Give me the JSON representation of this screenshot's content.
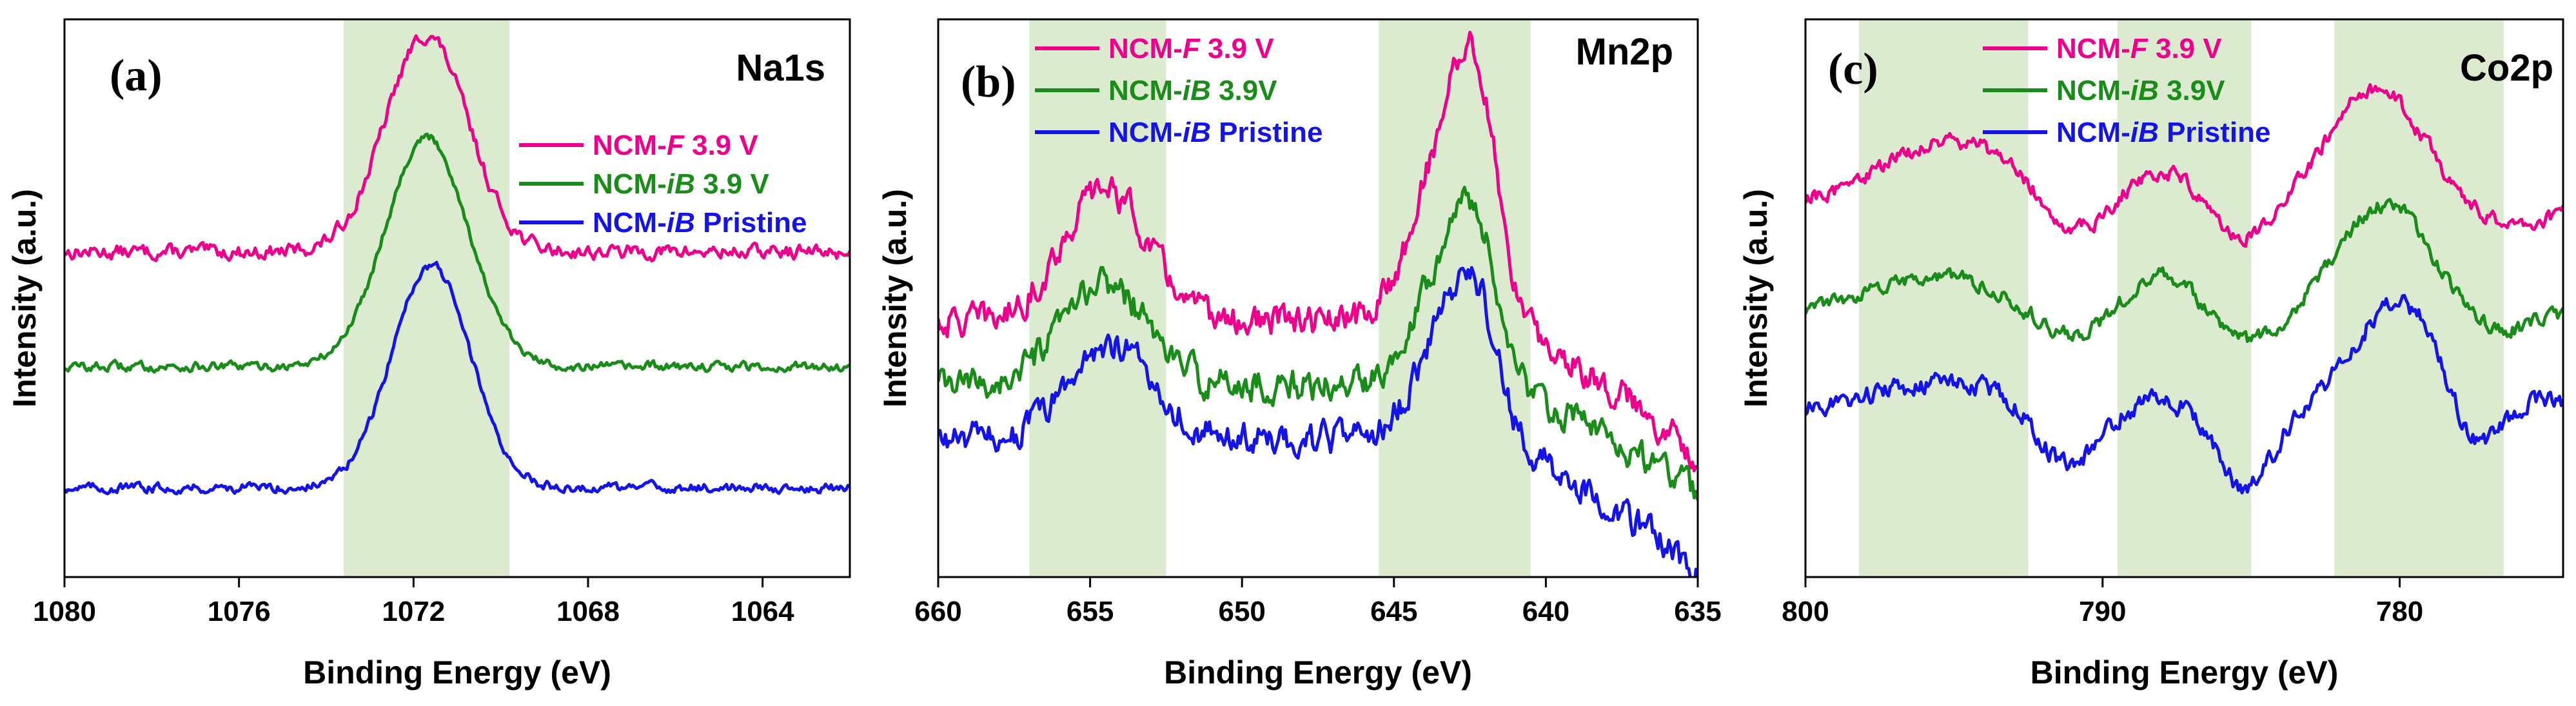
{
  "chart_data": [
    {
      "type": "line",
      "panel_label": "(a)",
      "title": "Na1s",
      "xlabel": "Binding Energy (eV)",
      "ylabel": "Intensity (a.u.)",
      "xlim": [
        1080,
        1062
      ],
      "x_ticks": [
        "1080",
        "1076",
        "1072",
        "1068",
        "1064"
      ],
      "x_tick_values": [
        1080,
        1076,
        1072,
        1068,
        1064
      ],
      "ylim": [
        0,
        1.75
      ],
      "y_ticks": false,
      "shaded_regions": [
        [
          1073.6,
          1069.8
        ]
      ],
      "legend_position": "right",
      "series": [
        {
          "name": "NCM-F 3.9 V",
          "name_prefix": "NCM-",
          "name_italic": "F",
          "name_suffix": " 3.9 V",
          "color": "#ec008c",
          "baseline": 1.02,
          "peaks": [
            {
              "center": 1071.7,
              "height": 0.68,
              "width": 0.95
            }
          ],
          "noise": 0.018
        },
        {
          "name": "NCM-iB 3.9 V",
          "name_prefix": "NCM-",
          "name_italic": "iB",
          "name_suffix": " 3.9 V",
          "color": "#1a8c1a",
          "baseline": 0.66,
          "peaks": [
            {
              "center": 1071.7,
              "height": 0.72,
              "width": 0.95
            }
          ],
          "noise": 0.012
        },
        {
          "name": "NCM-iB Pristine",
          "name_prefix": "NCM-",
          "name_italic": "iB",
          "name_suffix": " Pristine",
          "color": "#1414e6",
          "baseline": 0.28,
          "peaks": [
            {
              "center": 1071.6,
              "height": 0.7,
              "width": 0.9
            }
          ],
          "noise": 0.012
        }
      ]
    },
    {
      "type": "line",
      "panel_label": "(b)",
      "title": "Mn2p",
      "xlabel": "Binding Energy (eV)",
      "ylabel": "Intensity (a.u.)",
      "xlim": [
        660,
        635
      ],
      "x_ticks": [
        "660",
        "655",
        "650",
        "645",
        "640",
        "635"
      ],
      "x_tick_values": [
        660,
        655,
        650,
        645,
        640,
        635
      ],
      "ylim": [
        0,
        1.75
      ],
      "y_ticks": false,
      "shaded_regions": [
        [
          657.0,
          652.5
        ],
        [
          645.5,
          640.5
        ]
      ],
      "legend_position": "top-center",
      "series": [
        {
          "name": "NCM-F 3.9 V",
          "name_prefix": "NCM-",
          "name_italic": "F",
          "name_suffix": " 3.9 V",
          "color": "#ec008c",
          "baseline": 0.8,
          "slope_end": -0.42,
          "peaks": [
            {
              "center": 654.5,
              "height": 0.42,
              "width": 1.4
            },
            {
              "center": 643.5,
              "height": 0.45,
              "width": 1.0
            },
            {
              "center": 642.3,
              "height": 0.62,
              "width": 0.75
            }
          ],
          "noise": 0.04
        },
        {
          "name": "NCM-iB 3.9V",
          "name_prefix": "NCM-",
          "name_italic": "iB",
          "name_suffix": " 3.9V",
          "color": "#1a8c1a",
          "baseline": 0.6,
          "slope_end": -0.34,
          "peaks": [
            {
              "center": 654.5,
              "height": 0.32,
              "width": 1.4
            },
            {
              "center": 643.5,
              "height": 0.32,
              "width": 1.0
            },
            {
              "center": 642.3,
              "height": 0.4,
              "width": 0.75
            }
          ],
          "noise": 0.04
        },
        {
          "name": "NCM-iB Pristine",
          "name_prefix": "NCM-",
          "name_italic": "iB",
          "name_suffix": " Pristine",
          "color": "#1414e6",
          "baseline": 0.43,
          "slope_end": -0.42,
          "peaks": [
            {
              "center": 654.3,
              "height": 0.3,
              "width": 1.4
            },
            {
              "center": 643.4,
              "height": 0.28,
              "width": 1.0
            },
            {
              "center": 642.3,
              "height": 0.36,
              "width": 0.75
            }
          ],
          "noise": 0.04
        }
      ]
    },
    {
      "type": "line",
      "panel_label": "(c)",
      "title": "Co2p",
      "xlabel": "Binding Energy (eV)",
      "ylabel": "Intensity (a.u.)",
      "xlim": [
        800,
        774.5
      ],
      "x_ticks": [
        "800",
        "790",
        "780"
      ],
      "x_tick_values": [
        800,
        790,
        780
      ],
      "ylim": [
        0,
        1.75
      ],
      "y_ticks": false,
      "shaded_regions": [
        [
          798.2,
          792.5
        ],
        [
          789.5,
          785.0
        ],
        [
          782.2,
          776.5
        ]
      ],
      "legend_position": "top-center",
      "series": [
        {
          "name": "NCM-F 3.9 V",
          "name_prefix": "NCM-",
          "name_italic": "F",
          "name_suffix": " 3.9 V",
          "color": "#ec008c",
          "baseline": 1.18,
          "peaks": [
            {
              "center": 796.0,
              "height": 0.14,
              "width": 1.8
            },
            {
              "center": 793.5,
              "height": 0.1,
              "width": 1.6
            },
            {
              "center": 788.0,
              "height": 0.1,
              "width": 1.2
            },
            {
              "center": 780.8,
              "height": 0.35,
              "width": 1.6
            },
            {
              "center": 776.5,
              "height": -0.08,
              "width": 1.5
            }
          ],
          "dips": [
            {
              "center": 791.0,
              "depth": 0.12,
              "width": 1.1
            },
            {
              "center": 785.2,
              "depth": 0.12,
              "width": 1.1
            }
          ],
          "noise": 0.02
        },
        {
          "name": "NCM-iB 3.9V",
          "name_prefix": "NCM-",
          "name_italic": "iB",
          "name_suffix": " 3.9V",
          "color": "#1a8c1a",
          "baseline": 0.83,
          "peaks": [
            {
              "center": 795.5,
              "height": 0.11,
              "width": 2.2
            },
            {
              "center": 788.0,
              "height": 0.12,
              "width": 1.3
            },
            {
              "center": 780.5,
              "height": 0.34,
              "width": 1.5
            }
          ],
          "dips": [
            {
              "center": 791.0,
              "depth": 0.09,
              "width": 1.2
            },
            {
              "center": 785.2,
              "depth": 0.1,
              "width": 1.1
            },
            {
              "center": 776.8,
              "depth": 0.07,
              "width": 1.0
            }
          ],
          "noise": 0.02
        },
        {
          "name": "NCM-iB Pristine",
          "name_prefix": "NCM-",
          "name_italic": "iB",
          "name_suffix": " Pristine",
          "color": "#1414e6",
          "baseline": 0.52,
          "peaks": [
            {
              "center": 796.5,
              "height": 0.06,
              "width": 1.8
            },
            {
              "center": 794.0,
              "height": 0.06,
              "width": 1.6
            },
            {
              "center": 788.5,
              "height": 0.02,
              "width": 1.3
            },
            {
              "center": 787.0,
              "height": 0.02,
              "width": 1.3
            },
            {
              "center": 780.0,
              "height": 0.35,
              "width": 1.5
            },
            {
              "center": 775.5,
              "height": 0.05,
              "width": 1.2
            }
          ],
          "dips": [
            {
              "center": 791.2,
              "depth": 0.18,
              "width": 1.0
            },
            {
              "center": 785.2,
              "depth": 0.25,
              "width": 0.9
            },
            {
              "center": 777.5,
              "depth": 0.18,
              "width": 0.9
            }
          ],
          "noise": 0.025
        }
      ]
    }
  ],
  "colors": {
    "shade": "#dcebd0",
    "axis": "#000000"
  }
}
